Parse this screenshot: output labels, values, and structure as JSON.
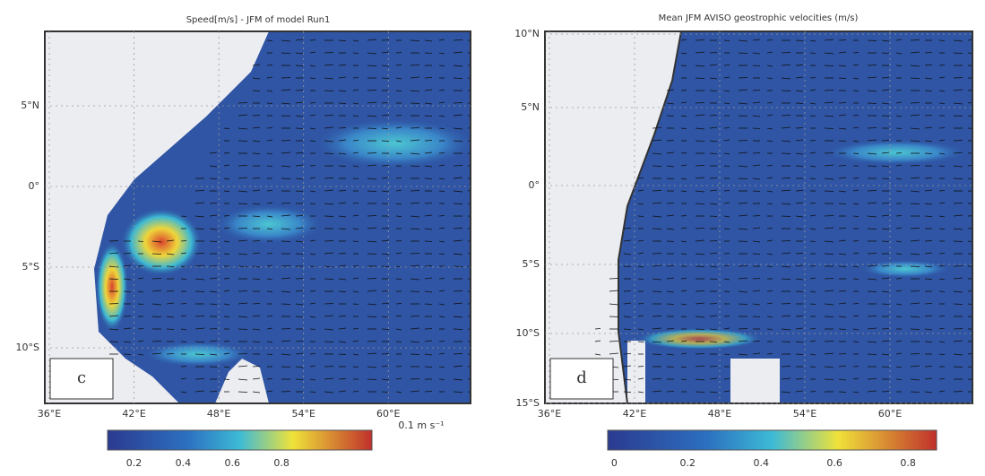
{
  "panels": [
    {
      "title": "Speed[m/s] - JFM of model Run1",
      "letter": "c",
      "y_labels": [
        "5°N",
        "0°",
        "5°S",
        "10°S"
      ],
      "x_labels": [
        "36°E",
        "42°E",
        "48°E",
        "54°E",
        "60°E"
      ],
      "scale_label": "0.1 m s⁻¹",
      "colorbar_ticks": [
        "0.2",
        "0.4",
        "0.6",
        "0.8"
      ]
    },
    {
      "title": "Mean JFM AVISO geostrophic velocities (m/s)",
      "letter": "d",
      "y_labels": [
        "10°N",
        "5°N",
        "0°",
        "5°S",
        "10°S",
        "15°S"
      ],
      "x_labels": [
        "36°E",
        "42°E",
        "48°E",
        "54°E",
        "60°E"
      ],
      "colorbar_ticks": [
        "0",
        "0.2",
        "0.4",
        "0.6",
        "0.8"
      ]
    }
  ]
}
